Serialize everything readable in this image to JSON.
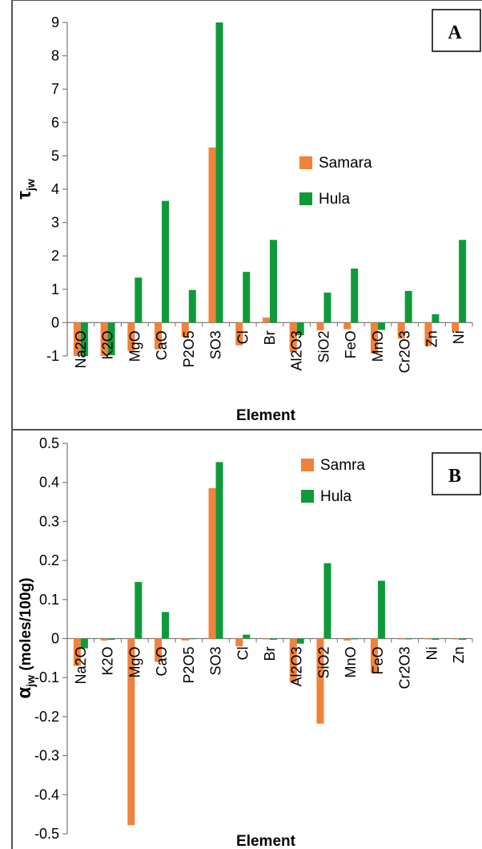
{
  "chart_data": [
    {
      "type": "bar",
      "panel_label": "A",
      "xlabel": "Element",
      "ylabel": "τjw",
      "ylabel_main": "τ",
      "ylabel_sub": "jw",
      "ylim": [
        -1,
        9
      ],
      "yticks": [
        "-1",
        "0",
        "1",
        "2",
        "3",
        "4",
        "5",
        "6",
        "7",
        "8",
        "9"
      ],
      "legend_position": "right-middle",
      "grid": false,
      "categories": [
        "Na2O",
        "K2O",
        "MgO",
        "CaO",
        "P2O5",
        "SO3",
        "Cl",
        "Br",
        "Al2O3",
        "SiO2",
        "FeO",
        "MnO",
        "Cr2O3",
        "Zn",
        "Ni"
      ],
      "series": [
        {
          "name": "Samara",
          "color": "#f0823a",
          "values": [
            -1.0,
            -1.0,
            -0.85,
            -0.8,
            -0.42,
            5.25,
            -0.68,
            0.15,
            -0.88,
            -0.23,
            -0.2,
            -0.93,
            -0.48,
            -0.7,
            -0.28
          ]
        },
        {
          "name": "Hula",
          "color": "#0f9a3a",
          "values": [
            -1.0,
            -0.98,
            1.35,
            3.65,
            0.98,
            9.0,
            1.52,
            2.48,
            -0.38,
            0.9,
            1.62,
            -0.22,
            0.95,
            0.25,
            2.48
          ]
        }
      ]
    },
    {
      "type": "bar",
      "panel_label": "B",
      "xlabel": "Element",
      "ylabel": "αjw (moles/100g)",
      "ylabel_main": "α",
      "ylabel_sub": "jw",
      "ylabel_rest": " (moles/100g)",
      "ylim": [
        -0.5,
        0.5
      ],
      "yticks": [
        "-0.5",
        "-0.4",
        "-0.3",
        "-0.2",
        "-0.1",
        "0",
        "0.1",
        "0.2",
        "0.3",
        "0.4",
        "0.5"
      ],
      "legend_position": "top-right",
      "grid": false,
      "categories": [
        "Na2O",
        "K2O",
        "MgO",
        "CaO",
        "P2O5",
        "SO3",
        "Cl",
        "Br",
        "Al2O3",
        "SiO2",
        "MnO",
        "FeO",
        "Cr2O3",
        "Ni",
        "Zn"
      ],
      "series": [
        {
          "name": "Samra",
          "color": "#f0823a",
          "values": [
            -0.07,
            -0.005,
            -0.478,
            -0.06,
            -0.005,
            0.385,
            -0.02,
            -0.002,
            -0.112,
            -0.218,
            -0.005,
            -0.088,
            -0.002,
            -0.002,
            -0.002
          ]
        },
        {
          "name": "Hula",
          "color": "#0f9a3a",
          "values": [
            -0.025,
            -0.003,
            0.145,
            0.068,
            0.0,
            0.452,
            0.01,
            -0.003,
            -0.013,
            0.193,
            -0.002,
            0.148,
            -0.002,
            -0.003,
            -0.003
          ]
        }
      ]
    }
  ]
}
